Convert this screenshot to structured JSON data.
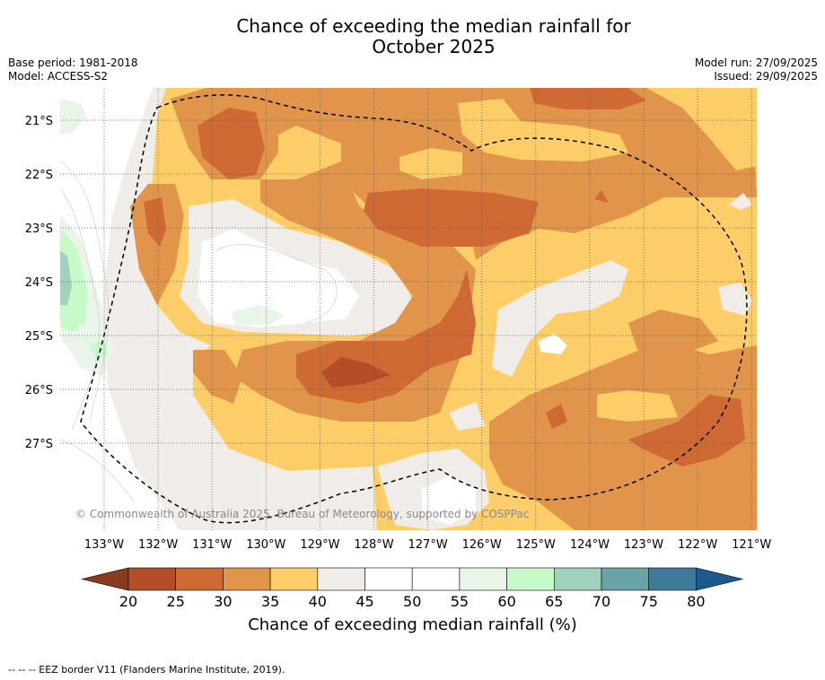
{
  "title_line1": "Chance of exceeding the median rainfall for",
  "title_line2": "October 2025",
  "base_period": "Base period: 1981-2018",
  "model": "Model: ACCESS-S2",
  "model_run": "Model run: 27/09/2025",
  "issued": "Issued: 29/09/2025",
  "copyright": "© Commonwealth of Australia 2025, Bureau of Meteorology, supported by COSPPac",
  "lat_labels": [
    "21°S",
    "22°S",
    "23°S",
    "24°S",
    "25°S",
    "26°S",
    "27°S"
  ],
  "lon_labels": [
    "133°W",
    "132°W",
    "131°W",
    "130°W",
    "129°W",
    "128°W",
    "127°W",
    "126°W",
    "125°W",
    "124°W",
    "123°W",
    "122°W",
    "121°W"
  ],
  "colorbar": {
    "levels": [
      "20",
      "25",
      "30",
      "35",
      "40",
      "45",
      "50",
      "55",
      "60",
      "65",
      "70",
      "75",
      "80"
    ],
    "colors": [
      "#8b3a1f",
      "#b34e28",
      "#cf6a35",
      "#e0954a",
      "#fdcd68",
      "#f0ece7",
      "#ffffff",
      "#ffffff",
      "#eaf5e9",
      "#c6fbc9",
      "#9fd1bc",
      "#6aa3a6",
      "#3f7a9b",
      "#1b5a8c"
    ],
    "label": "Chance of exceeding median rainfall (%)"
  },
  "footnote": "--  --  -- EEZ border V11 (Flanders Marine Institute, 2019)."
}
